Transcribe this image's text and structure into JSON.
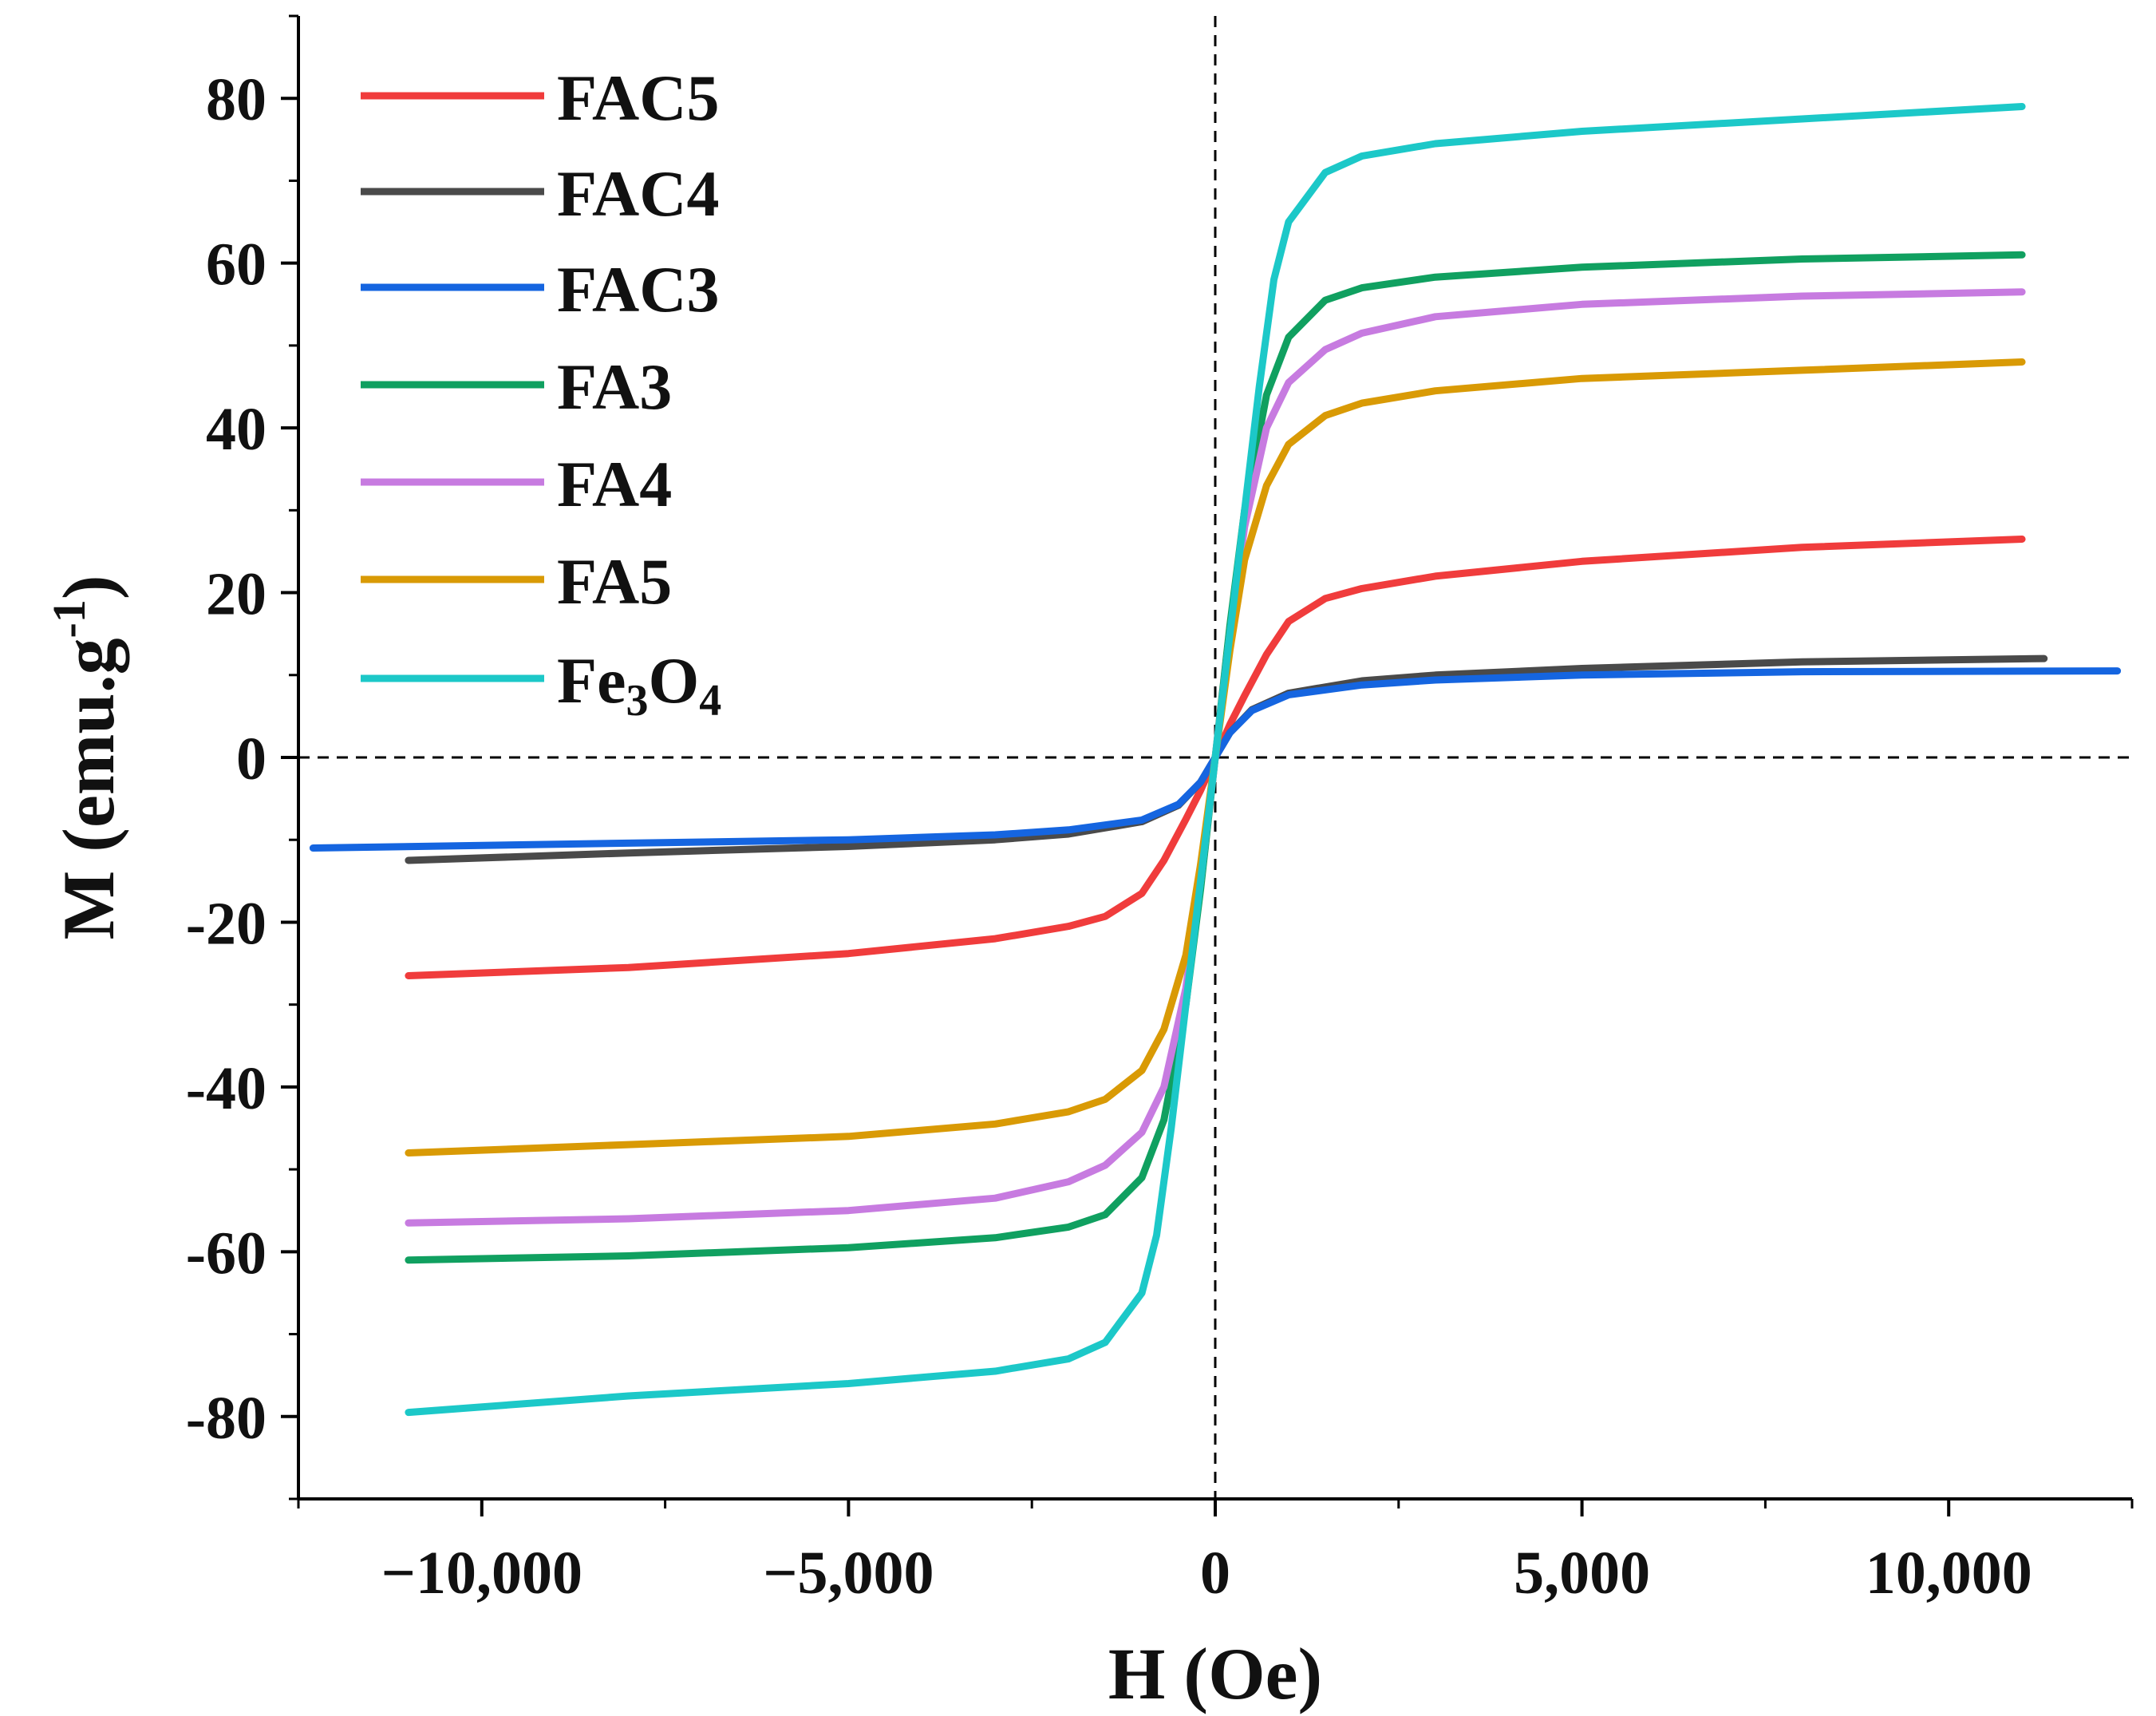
{
  "chart_data": {
    "type": "line",
    "title": "",
    "xlabel": "H (Oe)",
    "ylabel_main": "M (emu.g",
    "ylabel_sup": "-1",
    "ylabel_close": ")",
    "xlim": [
      -12500,
      12500
    ],
    "ylim": [
      -90,
      90
    ],
    "xticks": [
      {
        "value": -10000,
        "label": "−10,000"
      },
      {
        "value": -5000,
        "label": "−5,000"
      },
      {
        "value": 0,
        "label": "0"
      },
      {
        "value": 5000,
        "label": "5,000"
      },
      {
        "value": 10000,
        "label": "10,000"
      }
    ],
    "yticks": [
      {
        "value": 80,
        "label": "80"
      },
      {
        "value": 60,
        "label": "60"
      },
      {
        "value": 40,
        "label": "40"
      },
      {
        "value": 20,
        "label": "20"
      },
      {
        "value": 0,
        "label": "0"
      },
      {
        "value": -20,
        "label": "-20"
      },
      {
        "value": -40,
        "label": "-40"
      },
      {
        "value": -60,
        "label": "-60"
      },
      {
        "value": -80,
        "label": "-80"
      }
    ],
    "reference_lines": {
      "x": 0,
      "y": 0,
      "style": "dashed"
    },
    "legend_position": "top-left",
    "series": [
      {
        "name": "FAC5",
        "key": "fac5",
        "color": "#f03c3c",
        "points": [
          [
            -11000,
            -26.5
          ],
          [
            -8000,
            -25.5
          ],
          [
            -5000,
            -23.8
          ],
          [
            -3000,
            -22
          ],
          [
            -2000,
            -20.5
          ],
          [
            -1500,
            -19.3
          ],
          [
            -1000,
            -16.5
          ],
          [
            -700,
            -12.5
          ],
          [
            -400,
            -7.5
          ],
          [
            -200,
            -4
          ],
          [
            0,
            0
          ],
          [
            200,
            4
          ],
          [
            400,
            7.5
          ],
          [
            700,
            12.5
          ],
          [
            1000,
            16.5
          ],
          [
            1500,
            19.3
          ],
          [
            2000,
            20.5
          ],
          [
            3000,
            22
          ],
          [
            5000,
            23.8
          ],
          [
            8000,
            25.5
          ],
          [
            11000,
            26.5
          ]
        ]
      },
      {
        "name": "FAC4",
        "key": "fac4",
        "color": "#4a4a4a",
        "points": [
          [
            -11000,
            -12.5
          ],
          [
            -8000,
            -11.6
          ],
          [
            -5000,
            -10.8
          ],
          [
            -3000,
            -10
          ],
          [
            -2000,
            -9.3
          ],
          [
            -1000,
            -7.8
          ],
          [
            -500,
            -5.8
          ],
          [
            -200,
            -3
          ],
          [
            0,
            0
          ],
          [
            200,
            3
          ],
          [
            500,
            5.8
          ],
          [
            1000,
            7.8
          ],
          [
            2000,
            9.3
          ],
          [
            3000,
            10
          ],
          [
            5000,
            10.8
          ],
          [
            8000,
            11.6
          ],
          [
            11300,
            12
          ]
        ]
      },
      {
        "name": "FAC3",
        "key": "fac3",
        "color": "#1565e0",
        "points": [
          [
            -12300,
            -11
          ],
          [
            -8000,
            -10.4
          ],
          [
            -5000,
            -10
          ],
          [
            -3000,
            -9.4
          ],
          [
            -2000,
            -8.8
          ],
          [
            -1000,
            -7.6
          ],
          [
            -500,
            -5.7
          ],
          [
            -200,
            -3
          ],
          [
            0,
            0
          ],
          [
            200,
            3
          ],
          [
            500,
            5.7
          ],
          [
            1000,
            7.6
          ],
          [
            2000,
            8.8
          ],
          [
            3000,
            9.4
          ],
          [
            5000,
            10
          ],
          [
            8000,
            10.4
          ],
          [
            12300,
            10.5
          ]
        ]
      },
      {
        "name": "FA3",
        "key": "fa3",
        "color": "#10a060",
        "points": [
          [
            -11000,
            -61
          ],
          [
            -8000,
            -60.5
          ],
          [
            -5000,
            -59.5
          ],
          [
            -3000,
            -58.3
          ],
          [
            -2000,
            -57
          ],
          [
            -1500,
            -55.5
          ],
          [
            -1000,
            -51
          ],
          [
            -700,
            -44
          ],
          [
            -400,
            -30
          ],
          [
            -200,
            -16
          ],
          [
            0,
            0
          ],
          [
            200,
            16
          ],
          [
            400,
            30
          ],
          [
            700,
            44
          ],
          [
            1000,
            51
          ],
          [
            1500,
            55.5
          ],
          [
            2000,
            57
          ],
          [
            3000,
            58.3
          ],
          [
            5000,
            59.5
          ],
          [
            8000,
            60.5
          ],
          [
            11000,
            61
          ]
        ]
      },
      {
        "name": "FA4",
        "key": "fa4",
        "color": "#c77be0",
        "points": [
          [
            -11000,
            -56.5
          ],
          [
            -8000,
            -56
          ],
          [
            -5000,
            -55
          ],
          [
            -3000,
            -53.5
          ],
          [
            -2000,
            -51.5
          ],
          [
            -1500,
            -49.5
          ],
          [
            -1000,
            -45.5
          ],
          [
            -700,
            -40
          ],
          [
            -400,
            -28
          ],
          [
            -200,
            -15
          ],
          [
            0,
            0
          ],
          [
            200,
            15
          ],
          [
            400,
            28
          ],
          [
            700,
            40
          ],
          [
            1000,
            45.5
          ],
          [
            1500,
            49.5
          ],
          [
            2000,
            51.5
          ],
          [
            3000,
            53.5
          ],
          [
            5000,
            55
          ],
          [
            8000,
            56
          ],
          [
            11000,
            56.5
          ]
        ]
      },
      {
        "name": "FA5",
        "key": "fa5",
        "color": "#d99a05",
        "points": [
          [
            -11000,
            -48
          ],
          [
            -8000,
            -47
          ],
          [
            -5000,
            -46
          ],
          [
            -3000,
            -44.5
          ],
          [
            -2000,
            -43
          ],
          [
            -1500,
            -41.5
          ],
          [
            -1000,
            -38
          ],
          [
            -700,
            -33
          ],
          [
            -400,
            -24
          ],
          [
            -200,
            -13
          ],
          [
            0,
            0
          ],
          [
            200,
            13
          ],
          [
            400,
            24
          ],
          [
            700,
            33
          ],
          [
            1000,
            38
          ],
          [
            1500,
            41.5
          ],
          [
            2000,
            43
          ],
          [
            3000,
            44.5
          ],
          [
            5000,
            46
          ],
          [
            8000,
            47
          ],
          [
            11000,
            48
          ]
        ]
      },
      {
        "name": "Fe3O4",
        "key": "fe3o4",
        "color": "#1cc8c8",
        "points": [
          [
            -11000,
            -79.5
          ],
          [
            -8000,
            -77.5
          ],
          [
            -5000,
            -76
          ],
          [
            -3000,
            -74.5
          ],
          [
            -2000,
            -73
          ],
          [
            -1500,
            -71
          ],
          [
            -1000,
            -65
          ],
          [
            -800,
            -58
          ],
          [
            -600,
            -45
          ],
          [
            -400,
            -30
          ],
          [
            -200,
            -15
          ],
          [
            0,
            0
          ],
          [
            200,
            15
          ],
          [
            400,
            30
          ],
          [
            600,
            45
          ],
          [
            800,
            58
          ],
          [
            1000,
            65
          ],
          [
            1500,
            71
          ],
          [
            2000,
            73
          ],
          [
            3000,
            74.5
          ],
          [
            5000,
            76
          ],
          [
            8000,
            77.5
          ],
          [
            11000,
            79
          ]
        ]
      }
    ],
    "legend_labels": {
      "fac5": "FAC5",
      "fac4": "FAC4",
      "fac3": "FAC3",
      "fa3": "FA3",
      "fa4": "FA4",
      "fa5": "FA5",
      "fe3o4_base1": "Fe",
      "fe3o4_sub1": "3",
      "fe3o4_base2": "O",
      "fe3o4_sub2": "4"
    }
  }
}
